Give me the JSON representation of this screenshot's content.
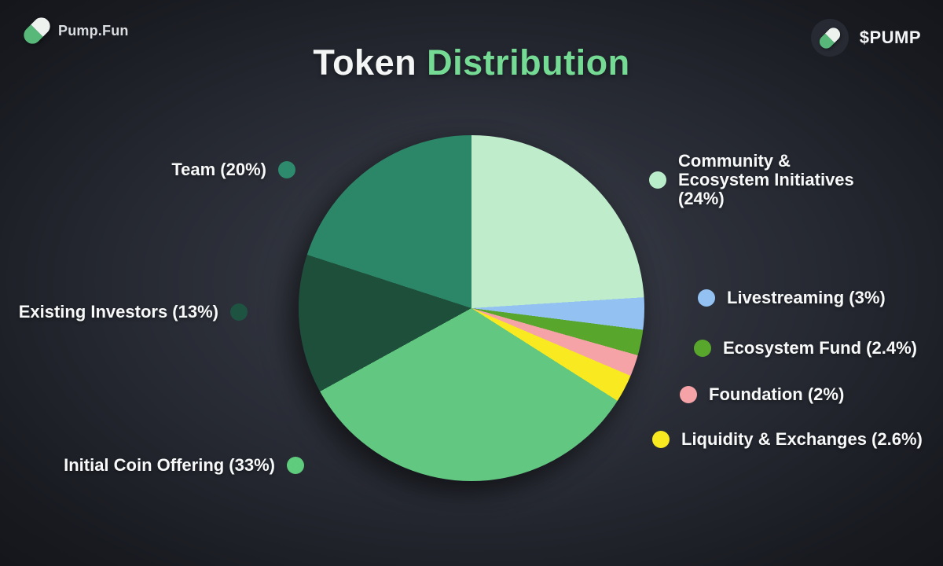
{
  "header": {
    "brand": "Pump.Fun",
    "ticker": "$PUMP",
    "title_word1": "Token ",
    "title_word2": "Distribution",
    "title_accent_color": "#74da94",
    "pill_green": "#57b87a",
    "pill_white": "#eef2ef"
  },
  "chart_data": {
    "type": "pie",
    "title": "Token Distribution",
    "start_angle_deg": 0,
    "direction": "clockwise",
    "segments": [
      {
        "label": "Community & Ecosystem Initiatives",
        "value": 24,
        "color": "#bfeccb"
      },
      {
        "label": "Livestreaming",
        "value": 3,
        "color": "#92c1f2"
      },
      {
        "label": "Ecosystem Fund",
        "value": 2.4,
        "color": "#58a62c"
      },
      {
        "label": "Foundation",
        "value": 2,
        "color": "#f6a3a8"
      },
      {
        "label": "Liquidity & Exchanges",
        "value": 2.6,
        "color": "#f8e920"
      },
      {
        "label": "Initial Coin Offering",
        "value": 33,
        "color": "#62c781"
      },
      {
        "label": "Existing Investors",
        "value": 13,
        "color": "#1d4f3a"
      },
      {
        "label": "Team",
        "value": 20,
        "color": "#2b8768"
      }
    ]
  },
  "legend": {
    "left": [
      {
        "label": "Team (20%)",
        "color": "#2e8a6c"
      },
      {
        "label": "Existing Investors (13%)",
        "color": "#1d5340"
      },
      {
        "label": "Initial Coin Offering (33%)",
        "color": "#5ecb7d"
      }
    ],
    "right": [
      {
        "label": "Community & Ecosystem Initiatives (24%)",
        "color": "#b9ecc8"
      },
      {
        "label": "Livestreaming (3%)",
        "color": "#92c1f2"
      },
      {
        "label": "Ecosystem Fund (2.4%)",
        "color": "#58a62c"
      },
      {
        "label": "Foundation (2%)",
        "color": "#f6a3a8"
      },
      {
        "label": "Liquidity & Exchanges (2.6%)",
        "color": "#f8e920"
      }
    ]
  }
}
